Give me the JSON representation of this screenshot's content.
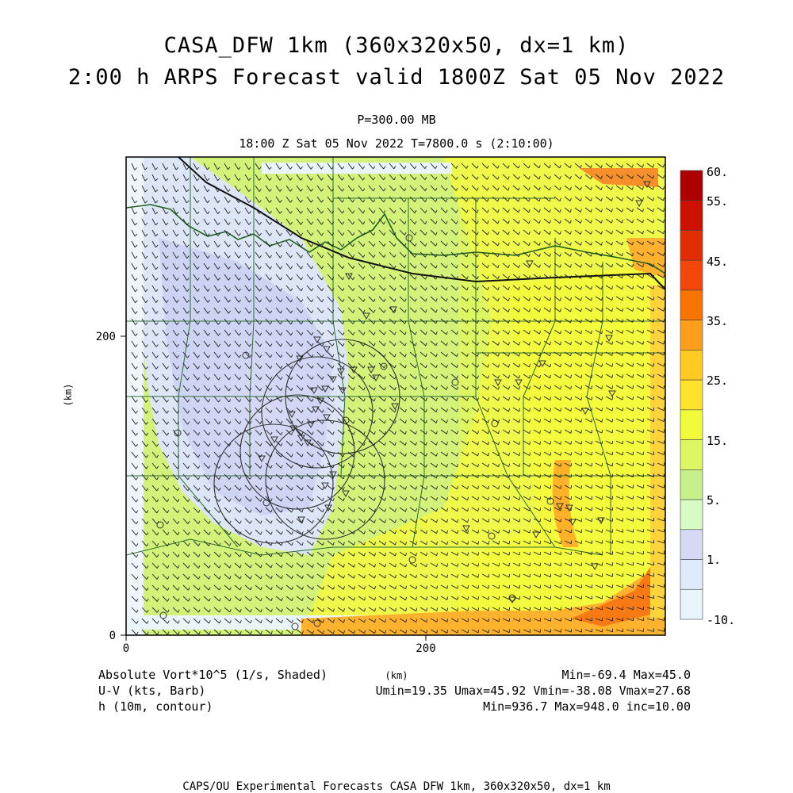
{
  "header": {
    "title_line1": "CASA_DFW 1km (360x320x50, dx=1 km)",
    "title_line2": "2:00 h ARPS Forecast valid 1800Z Sat 05 Nov 2022",
    "level": "P=300.00 MB",
    "time_line": "18:00 Z Sat 05 Nov 2022   T=7800.0 s (2:10:00)"
  },
  "chart_data": {
    "type": "heatmap",
    "x_axis": {
      "label": "(km)",
      "ticks": [
        0,
        200
      ],
      "range": [
        0,
        360
      ]
    },
    "y_axis": {
      "label": "(km)",
      "ticks": [
        0,
        200
      ],
      "range": [
        0,
        320
      ]
    },
    "colorbar": {
      "labels": [
        "60.",
        "55.",
        "45.",
        "35.",
        "25.",
        "15.",
        "5.",
        "1.",
        "-10."
      ],
      "colors": [
        "#ad0000",
        "#cc1100",
        "#e12d00",
        "#f2460a",
        "#f77400",
        "#ff9d1c",
        "#ffcb22",
        "#ffe22b",
        "#f2fb3a",
        "#ddf762",
        "#c8f08a",
        "#d8fbc3",
        "#d5d9f4",
        "#dfeafa",
        "#e9f4fb"
      ]
    },
    "fields": [
      {
        "name": "Absolute Vort*10^5 (1/s, Shaded)",
        "stats": "Min=-69.4 Max=45.0"
      },
      {
        "name": "U-V (kts, Barb)",
        "stats": "Umin=19.35 Umax=45.92 Vmin=-38.08 Vmax=27.68"
      },
      {
        "name": "h (10m, contour)",
        "stats": "Min=936.7 Max=948.0 inc=10.00"
      }
    ]
  },
  "footer": "CAPS/OU Experimental Forecasts  CASA DFW 1km, 360x320x50, dx=1 km"
}
